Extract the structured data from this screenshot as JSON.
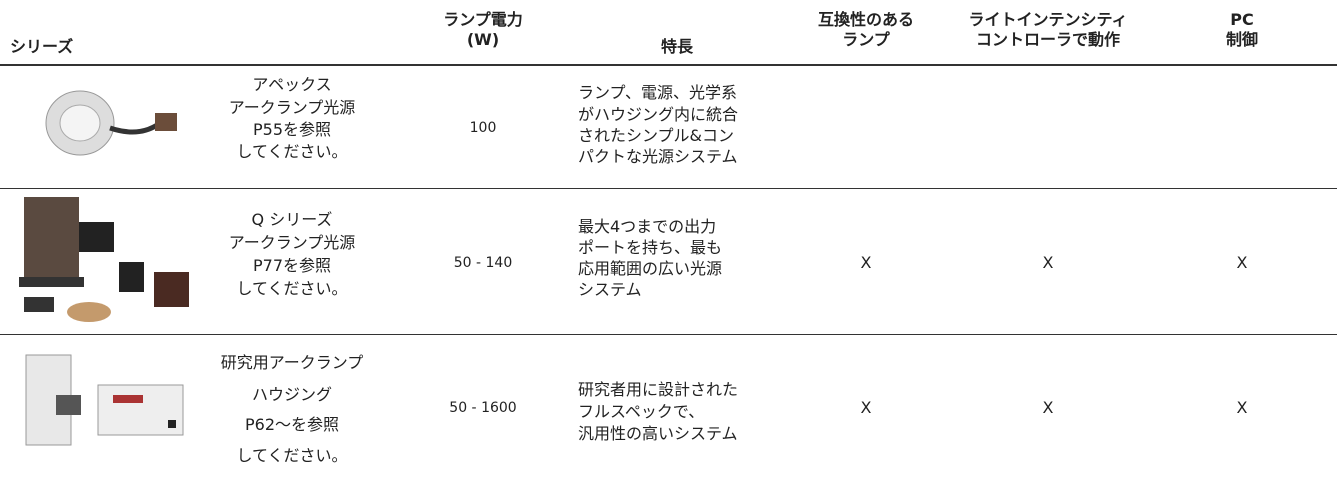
{
  "header": {
    "columns": [
      {
        "lines": [
          "シリーズ"
        ]
      },
      {
        "lines": [
          "ランプ電力",
          "(W)"
        ]
      },
      {
        "lines": [
          "特長"
        ]
      },
      {
        "lines": [
          "互換性のある",
          "ランプ"
        ]
      },
      {
        "lines": [
          "ライトインテンシティ",
          "コントローラで動作"
        ]
      },
      {
        "lines": [
          "PC",
          "制御"
        ]
      }
    ]
  },
  "table": {
    "rows": [
      {
        "series": [
          "アペックス",
          "アークランプ光源",
          "P55を参照",
          "してください。"
        ],
        "power": "100",
        "features": [
          "ランプ、電源、光学系",
          "がハウジング内に統合",
          "されたシンプル&コン",
          "パクトな光源システム"
        ]
      },
      {
        "series": [
          "Q シリーズ",
          "アークランプ光源",
          "P77を参照",
          "してください。"
        ],
        "power": "50 - 140",
        "features": [
          "最大4つまでの出力",
          "ポートを持ち、最も",
          "応用範囲の広い光源",
          "システム"
        ],
        "compatible": "X",
        "controller": "X",
        "pc": "X"
      },
      {
        "series": [
          "研究用アークランプ",
          "ハウジング",
          "P62～を参照",
          "してください。"
        ],
        "power": "50 - 1600",
        "features": [
          "研究者用に設計された",
          "フルスペックで、",
          "汎用性の高いシステム"
        ],
        "compatible": "X",
        "controller": "X",
        "pc": "X"
      }
    ]
  }
}
